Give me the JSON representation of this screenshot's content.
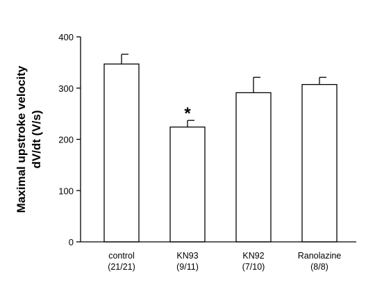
{
  "chart_data": {
    "type": "bar",
    "ylabel_lines": [
      "Maximal upstroke velocity",
      "dV/dt (V/s)"
    ],
    "xlabel": "",
    "ylim": [
      0,
      400
    ],
    "yticks": [
      0,
      100,
      200,
      300,
      400
    ],
    "grid": false,
    "legend": "none",
    "categories": [
      {
        "name": "control",
        "n": "(21/21)"
      },
      {
        "name": "KN93",
        "n": "(9/11)"
      },
      {
        "name": "KN92",
        "n": "(7/10)"
      },
      {
        "name": "Ranolazine",
        "n": "(8/8)"
      }
    ],
    "values": [
      347,
      224,
      291,
      307
    ],
    "errors": [
      19,
      13,
      30,
      14
    ],
    "annotations": [
      {
        "category_index": 1,
        "text": "*"
      }
    ],
    "colors": {
      "bar_fill": "#ffffff",
      "stroke": "#000000"
    }
  }
}
